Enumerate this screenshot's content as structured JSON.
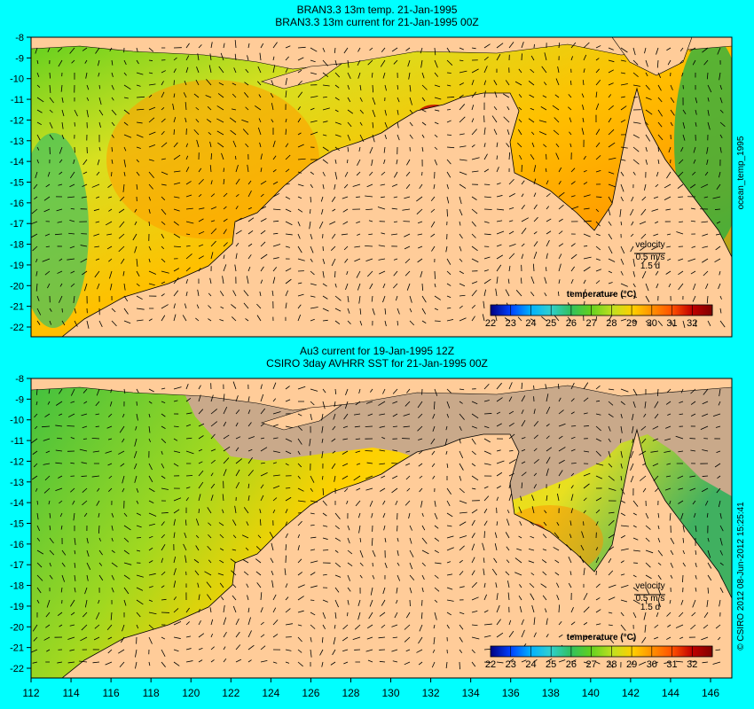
{
  "top_panel": {
    "title_line1": "BRAN3.3 13m temp. 21-Jan-1995",
    "title_line2": "BRAN3.3 13m current for 21-Jan-1995 00Z",
    "side_label": "ocean_temp_1995",
    "y_ticks": [
      "-8",
      "-9",
      "-10",
      "-11",
      "-12",
      "-13",
      "-14",
      "-15",
      "-16",
      "-17",
      "-18",
      "-19",
      "-20",
      "-21",
      "-22"
    ],
    "velocity_label": "velocity",
    "velocity_speed": "0.5 m/s",
    "velocity_time": "1.5 d",
    "colorbar_title": "temperature (°C)",
    "colorbar_ticks": [
      "22",
      "23",
      "24",
      "25",
      "26",
      "27",
      "28",
      "29",
      "30",
      "31",
      "32"
    ]
  },
  "bottom_panel": {
    "title_line1": "Au3 current for 19-Jan-1995 12Z",
    "title_line2": "CSIRO 3day AVHRR SST for 21-Jan-1995 00Z",
    "side_label": "© CSIRO 2012  08-Jun-2012 15:25:41",
    "y_ticks": [
      "-8",
      "-9",
      "-10",
      "-11",
      "-12",
      "-13",
      "-14",
      "-15",
      "-16",
      "-17",
      "-18",
      "-19",
      "-20",
      "-21",
      "-22"
    ],
    "x_ticks": [
      "112",
      "114",
      "116",
      "118",
      "120",
      "122",
      "124",
      "126",
      "128",
      "130",
      "132",
      "134",
      "136",
      "138",
      "140",
      "142",
      "144",
      "146"
    ],
    "velocity_label": "velocity",
    "velocity_speed": "0.5 m/s",
    "velocity_time": "1.5 d",
    "colorbar_title": "temperature (°C)",
    "colorbar_ticks": [
      "22",
      "23",
      "24",
      "25",
      "26",
      "27",
      "28",
      "29",
      "30",
      "31",
      "32"
    ]
  },
  "colors": {
    "page_background": "#00ffff",
    "land": "#ffcc99",
    "no_data": "#c9a98a",
    "colormap": [
      "#000080",
      "#0040ff",
      "#00b0ff",
      "#30d0d0",
      "#30c060",
      "#60d020",
      "#c0e020",
      "#ffd000",
      "#ff9000",
      "#ff5000",
      "#c00000",
      "#800000"
    ]
  }
}
